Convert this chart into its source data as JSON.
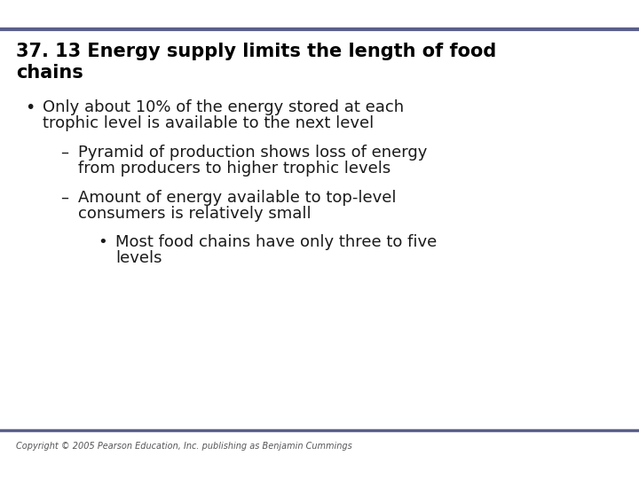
{
  "title_line1": "37. 13 Energy supply limits the length of food",
  "title_line2": "chains",
  "background_color": "#ffffff",
  "bar_color": "#5a5f8a",
  "title_color": "#000000",
  "title_fontsize": 15,
  "bullet1_line1": "Only about 10% of the energy stored at each",
  "bullet1_line2": "trophic level is available to the next level",
  "sub1_line1": "Pyramid of production shows loss of energy",
  "sub1_line2": "from producers to higher trophic levels",
  "sub2_line1": "Amount of energy available to top-level",
  "sub2_line2": "consumers is relatively small",
  "subsub1_line1": "Most food chains have only three to five",
  "subsub1_line2": "levels",
  "body_fontsize": 13,
  "copyright": "Copyright © 2005 Pearson Education, Inc. publishing as Benjamin Cummings",
  "copyright_fontsize": 7,
  "text_color": "#1a1a1a",
  "bullet_color": "#1a1a1a",
  "dash_color": "#1a1a1a"
}
